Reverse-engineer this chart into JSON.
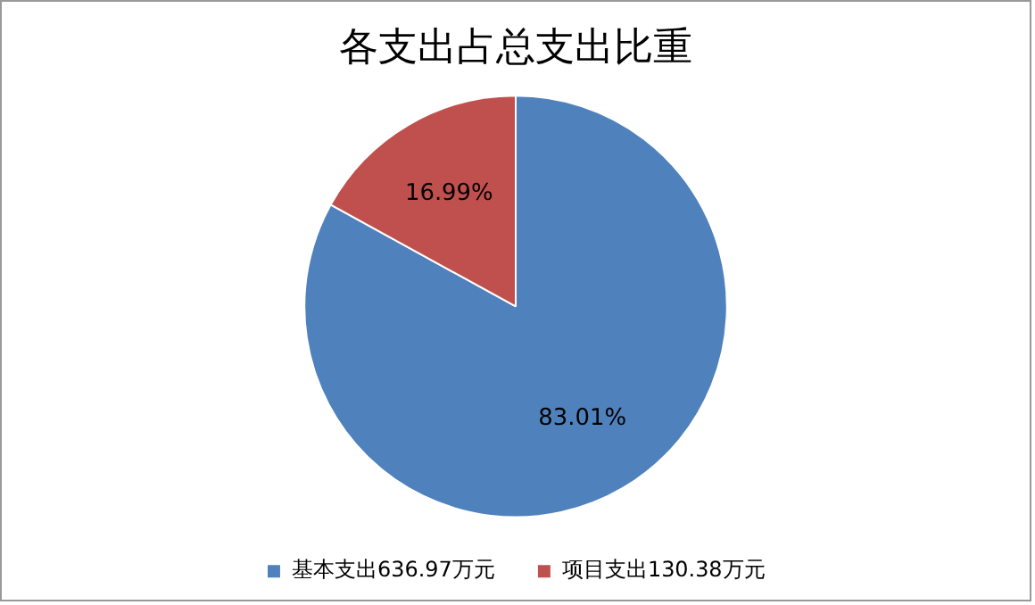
{
  "chart_data": {
    "type": "pie",
    "title": "各支出占总支出比重",
    "categories": [
      "基本支出636.97万元",
      "项目支出130.38万元"
    ],
    "values": [
      83.01,
      16.99
    ],
    "colors": [
      "#4f81bd",
      "#c0504d"
    ],
    "value_labels": [
      "83.01%",
      "16.99%"
    ],
    "legend": "bottom"
  }
}
